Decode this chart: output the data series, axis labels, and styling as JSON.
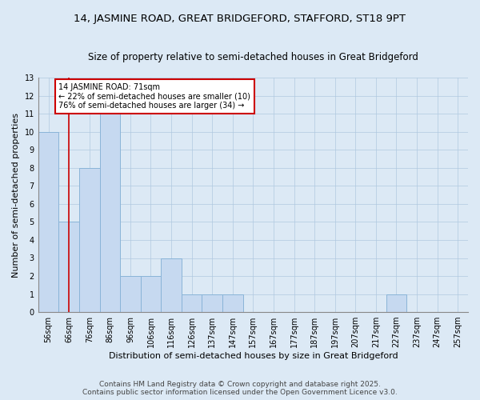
{
  "title_line1": "14, JASMINE ROAD, GREAT BRIDGEFORD, STAFFORD, ST18 9PT",
  "title_line2": "Size of property relative to semi-detached houses in Great Bridgeford",
  "xlabel": "Distribution of semi-detached houses by size in Great Bridgeford",
  "ylabel": "Number of semi-detached properties",
  "footnote": "Contains HM Land Registry data © Crown copyright and database right 2025.\nContains public sector information licensed under the Open Government Licence v3.0.",
  "bin_labels": [
    "56sqm",
    "66sqm",
    "76sqm",
    "86sqm",
    "96sqm",
    "106sqm",
    "116sqm",
    "126sqm",
    "137sqm",
    "147sqm",
    "157sqm",
    "167sqm",
    "177sqm",
    "187sqm",
    "197sqm",
    "207sqm",
    "217sqm",
    "227sqm",
    "237sqm",
    "247sqm",
    "257sqm"
  ],
  "values": [
    10,
    5,
    8,
    11,
    2,
    2,
    3,
    1,
    1,
    1,
    0,
    0,
    0,
    0,
    0,
    0,
    0,
    1,
    0,
    0,
    0
  ],
  "bar_color": "#c6d9f0",
  "bar_edge_color": "#8ab4d8",
  "red_line_x": 1.0,
  "annotation_title": "14 JASMINE ROAD: 71sqm",
  "annotation_line1": "← 22% of semi-detached houses are smaller (10)",
  "annotation_line2": "76% of semi-detached houses are larger (34) →",
  "annotation_box_color": "#ffffff",
  "annotation_box_edge": "#cc0000",
  "red_line_color": "#cc0000",
  "ylim": [
    0,
    13
  ],
  "yticks": [
    0,
    1,
    2,
    3,
    4,
    5,
    6,
    7,
    8,
    9,
    10,
    11,
    12,
    13
  ],
  "bg_color": "#dce9f5",
  "plot_bg_color": "#dce9f5",
  "grid_color": "#b0c8e0",
  "title_fontsize": 9.5,
  "subtitle_fontsize": 8.5,
  "axis_label_fontsize": 8,
  "tick_fontsize": 7,
  "annotation_fontsize": 7,
  "footnote_fontsize": 6.5
}
